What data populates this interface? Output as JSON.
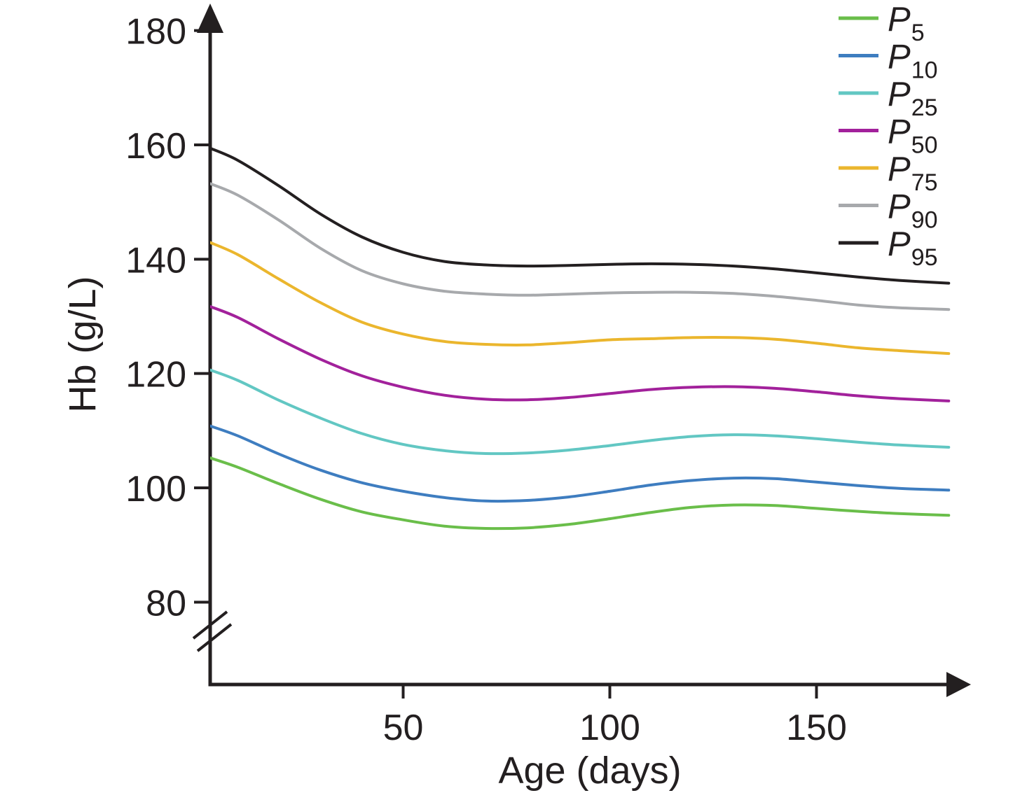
{
  "figure": {
    "background": "#ffffff",
    "text_color": "#231f20"
  },
  "chart_data": {
    "type": "line",
    "title": "",
    "xlabel": "Age (days)",
    "ylabel": "Hb (g/L)",
    "x_unit": "days",
    "y_unit": "g/L",
    "xlim": [
      0,
      190
    ],
    "ylim_visible": [
      80,
      180
    ],
    "x_ticks": [
      50,
      100,
      150
    ],
    "y_ticks": [
      180,
      160,
      140,
      120,
      100,
      80
    ],
    "axis_break_bottom_y": true,
    "grid": false,
    "legend_position": "top-right",
    "x": [
      3,
      10,
      20,
      30,
      40,
      50,
      60,
      70,
      80,
      90,
      100,
      110,
      120,
      130,
      140,
      150,
      160,
      170,
      182
    ],
    "series": [
      {
        "name": "P5",
        "legend_main": "P",
        "legend_sub": "5",
        "color": "#6abe4a",
        "values": [
          105.3,
          103.6,
          100.7,
          98.0,
          95.8,
          94.4,
          93.3,
          92.9,
          93.0,
          93.6,
          94.6,
          95.7,
          96.6,
          97.0,
          96.9,
          96.4,
          95.9,
          95.5,
          95.2
        ]
      },
      {
        "name": "P10",
        "legend_main": "P",
        "legend_sub": "10",
        "color": "#3e7dc0",
        "values": [
          110.9,
          109.1,
          105.9,
          103.1,
          100.9,
          99.4,
          98.3,
          97.7,
          97.8,
          98.4,
          99.4,
          100.5,
          101.3,
          101.7,
          101.6,
          101.0,
          100.4,
          99.9,
          99.6
        ]
      },
      {
        "name": "P25",
        "legend_main": "P",
        "legend_sub": "25",
        "color": "#62c7c3",
        "values": [
          120.7,
          118.8,
          115.3,
          112.2,
          109.5,
          107.6,
          106.5,
          106.0,
          106.1,
          106.6,
          107.4,
          108.3,
          109.0,
          109.3,
          109.1,
          108.6,
          108.0,
          107.5,
          107.1
        ]
      },
      {
        "name": "P50",
        "legend_main": "P",
        "legend_sub": "50",
        "color": "#a2219b",
        "values": [
          131.8,
          129.8,
          126.0,
          122.5,
          119.6,
          117.6,
          116.2,
          115.5,
          115.4,
          115.8,
          116.5,
          117.2,
          117.6,
          117.7,
          117.4,
          116.8,
          116.1,
          115.6,
          115.2
        ]
      },
      {
        "name": "P75",
        "legend_main": "P",
        "legend_sub": "75",
        "color": "#ebb62d",
        "values": [
          143.0,
          140.8,
          136.5,
          132.4,
          129.0,
          126.9,
          125.6,
          125.1,
          125.0,
          125.4,
          125.9,
          126.1,
          126.3,
          126.3,
          126.0,
          125.3,
          124.5,
          124.0,
          123.5
        ]
      },
      {
        "name": "P90",
        "legend_main": "P",
        "legend_sub": "90",
        "color": "#a7a9ac",
        "values": [
          153.3,
          151.2,
          146.8,
          141.9,
          138.0,
          135.7,
          134.4,
          133.9,
          133.7,
          133.9,
          134.1,
          134.2,
          134.2,
          134.0,
          133.5,
          132.8,
          132.0,
          131.5,
          131.2
        ]
      },
      {
        "name": "P95",
        "legend_main": "P",
        "legend_sub": "95",
        "color": "#231f20",
        "values": [
          159.5,
          157.3,
          152.8,
          147.9,
          143.9,
          141.2,
          139.6,
          139.0,
          138.8,
          138.9,
          139.1,
          139.2,
          139.1,
          138.8,
          138.3,
          137.6,
          136.9,
          136.3,
          135.8
        ]
      }
    ]
  }
}
